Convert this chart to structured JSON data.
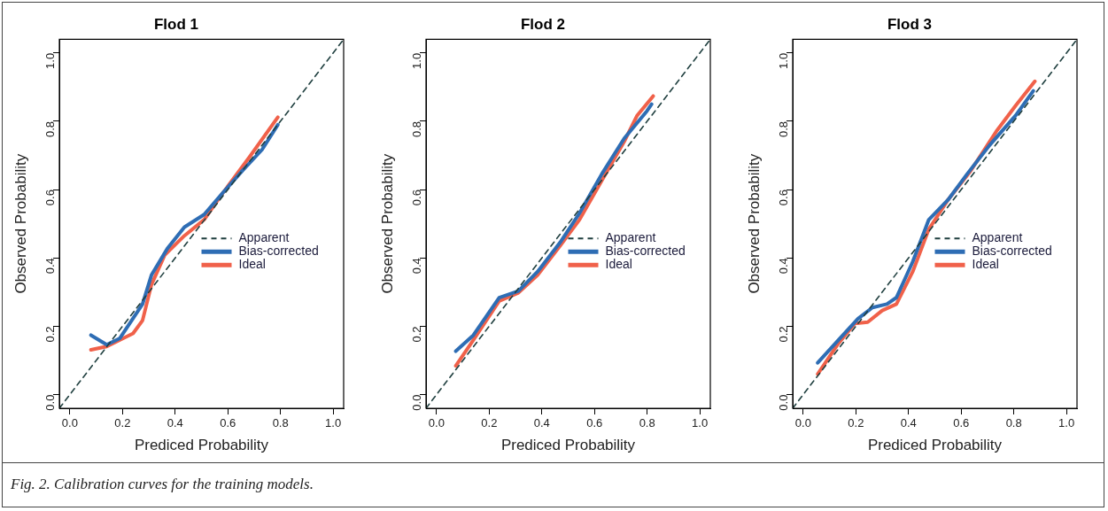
{
  "chart_data": [
    {
      "type": "line",
      "title": "Flod 1",
      "xlabel": "Prediced Probability",
      "ylabel": "Observed Probability",
      "xlim": [
        -0.04,
        1.04
      ],
      "ylim": [
        -0.04,
        1.04
      ],
      "xticks": [
        {
          "value": 0,
          "label": "0.0"
        },
        {
          "value": 0.2,
          "label": "0.2"
        },
        {
          "value": 0.4,
          "label": "0.4"
        },
        {
          "value": 0.6,
          "label": "0.6"
        },
        {
          "value": 0.8,
          "label": "0.8"
        },
        {
          "value": 1,
          "label": "1.0"
        }
      ],
      "yticks": [
        {
          "value": 0,
          "label": "0.0"
        },
        {
          "value": 0.2,
          "label": "0.2"
        },
        {
          "value": 0.4,
          "label": "0.4"
        },
        {
          "value": 0.6,
          "label": "0.6"
        },
        {
          "value": 0.8,
          "label": "0.8"
        },
        {
          "value": 1,
          "label": "1.0"
        }
      ],
      "grid": false,
      "legend": "right",
      "marker": "none",
      "series": [
        {
          "name": "Apparent",
          "color": "#1f3f3f",
          "line_style": "dashed",
          "x": [
            -0.04,
            1.04
          ],
          "values": [
            -0.04,
            1.04
          ]
        },
        {
          "name": "Bias-corrected",
          "color": "#2e6db4",
          "line_style": "solid",
          "x": [
            0.08,
            0.14,
            0.19,
            0.276,
            0.31,
            0.37,
            0.435,
            0.51,
            0.58,
            0.655,
            0.73,
            0.79
          ],
          "values": [
            0.174,
            0.146,
            0.165,
            0.265,
            0.35,
            0.427,
            0.49,
            0.527,
            0.59,
            0.655,
            0.717,
            0.79
          ]
        },
        {
          "name": "Ideal",
          "color": "#f0614a",
          "line_style": "solid",
          "x": [
            0.08,
            0.14,
            0.24,
            0.276,
            0.31,
            0.36,
            0.435,
            0.51,
            0.58,
            0.68,
            0.79
          ],
          "values": [
            0.131,
            0.141,
            0.179,
            0.217,
            0.322,
            0.408,
            0.465,
            0.512,
            0.589,
            0.693,
            0.812
          ]
        }
      ],
      "annotations": [
        "Fig. 2. Calibration curves for the training models."
      ]
    },
    {
      "type": "line",
      "title": "Flod 2",
      "xlabel": "Prediced Probability",
      "ylabel": "Observed Probability",
      "xlim": [
        -0.04,
        1.04
      ],
      "ylim": [
        -0.04,
        1.04
      ],
      "xticks": [
        {
          "value": 0,
          "label": "0.0"
        },
        {
          "value": 0.2,
          "label": "0.2"
        },
        {
          "value": 0.4,
          "label": "0.4"
        },
        {
          "value": 0.6,
          "label": "0.6"
        },
        {
          "value": 0.8,
          "label": "0.8"
        },
        {
          "value": 1,
          "label": "1.0"
        }
      ],
      "yticks": [
        {
          "value": 0,
          "label": "0.0"
        },
        {
          "value": 0.2,
          "label": "0.2"
        },
        {
          "value": 0.4,
          "label": "0.4"
        },
        {
          "value": 0.6,
          "label": "0.6"
        },
        {
          "value": 0.8,
          "label": "0.8"
        },
        {
          "value": 1,
          "label": "1.0"
        }
      ],
      "grid": false,
      "legend": "right",
      "marker": "none",
      "series": [
        {
          "name": "Apparent",
          "color": "#1f3f3f",
          "line_style": "dashed",
          "x": [
            -0.04,
            1.04
          ],
          "values": [
            -0.04,
            1.04
          ]
        },
        {
          "name": "Bias-corrected",
          "color": "#2e6db4",
          "line_style": "solid",
          "x": [
            0.073,
            0.14,
            0.238,
            0.311,
            0.384,
            0.47,
            0.543,
            0.628,
            0.713,
            0.799,
            0.817
          ],
          "values": [
            0.127,
            0.174,
            0.284,
            0.303,
            0.36,
            0.446,
            0.531,
            0.646,
            0.75,
            0.83,
            0.85
          ]
        },
        {
          "name": "Ideal",
          "color": "#f0614a",
          "line_style": "solid",
          "x": [
            0.073,
            0.14,
            0.238,
            0.311,
            0.384,
            0.47,
            0.543,
            0.628,
            0.713,
            0.762,
            0.823
          ],
          "values": [
            0.084,
            0.16,
            0.274,
            0.298,
            0.35,
            0.436,
            0.512,
            0.627,
            0.741,
            0.817,
            0.874
          ]
        }
      ]
    },
    {
      "type": "line",
      "title": "Flod 3",
      "xlabel": "Prediced Probability",
      "ylabel": "Observed Probability",
      "xlim": [
        -0.04,
        1.04
      ],
      "ylim": [
        -0.04,
        1.04
      ],
      "xticks": [
        {
          "value": 0,
          "label": "0.0"
        },
        {
          "value": 0.2,
          "label": "0.2"
        },
        {
          "value": 0.4,
          "label": "0.4"
        },
        {
          "value": 0.6,
          "label": "0.6"
        },
        {
          "value": 0.8,
          "label": "0.8"
        },
        {
          "value": 1,
          "label": "1.0"
        }
      ],
      "yticks": [
        {
          "value": 0,
          "label": "0.0"
        },
        {
          "value": 0.2,
          "label": "0.2"
        },
        {
          "value": 0.4,
          "label": "0.4"
        },
        {
          "value": 0.6,
          "label": "0.6"
        },
        {
          "value": 0.8,
          "label": "0.8"
        },
        {
          "value": 1,
          "label": "1.0"
        }
      ],
      "grid": false,
      "legend": "right",
      "marker": "none",
      "series": [
        {
          "name": "Apparent",
          "color": "#1f3f3f",
          "line_style": "dashed",
          "x": [
            -0.04,
            1.04
          ],
          "values": [
            -0.04,
            1.04
          ]
        },
        {
          "name": "Bias-corrected",
          "color": "#2e6db4",
          "line_style": "solid",
          "x": [
            0.055,
            0.134,
            0.208,
            0.263,
            0.318,
            0.354,
            0.416,
            0.477,
            0.55,
            0.623,
            0.709,
            0.807,
            0.874
          ],
          "values": [
            0.093,
            0.16,
            0.222,
            0.255,
            0.265,
            0.284,
            0.389,
            0.512,
            0.57,
            0.646,
            0.731,
            0.817,
            0.889
          ]
        },
        {
          "name": "Ideal",
          "color": "#f0614a",
          "line_style": "solid",
          "x": [
            0.055,
            0.134,
            0.196,
            0.245,
            0.3,
            0.354,
            0.416,
            0.477,
            0.55,
            0.636,
            0.733,
            0.807,
            0.88
          ],
          "values": [
            0.06,
            0.15,
            0.208,
            0.212,
            0.246,
            0.265,
            0.36,
            0.484,
            0.57,
            0.655,
            0.77,
            0.846,
            0.917
          ]
        }
      ]
    }
  ]
}
